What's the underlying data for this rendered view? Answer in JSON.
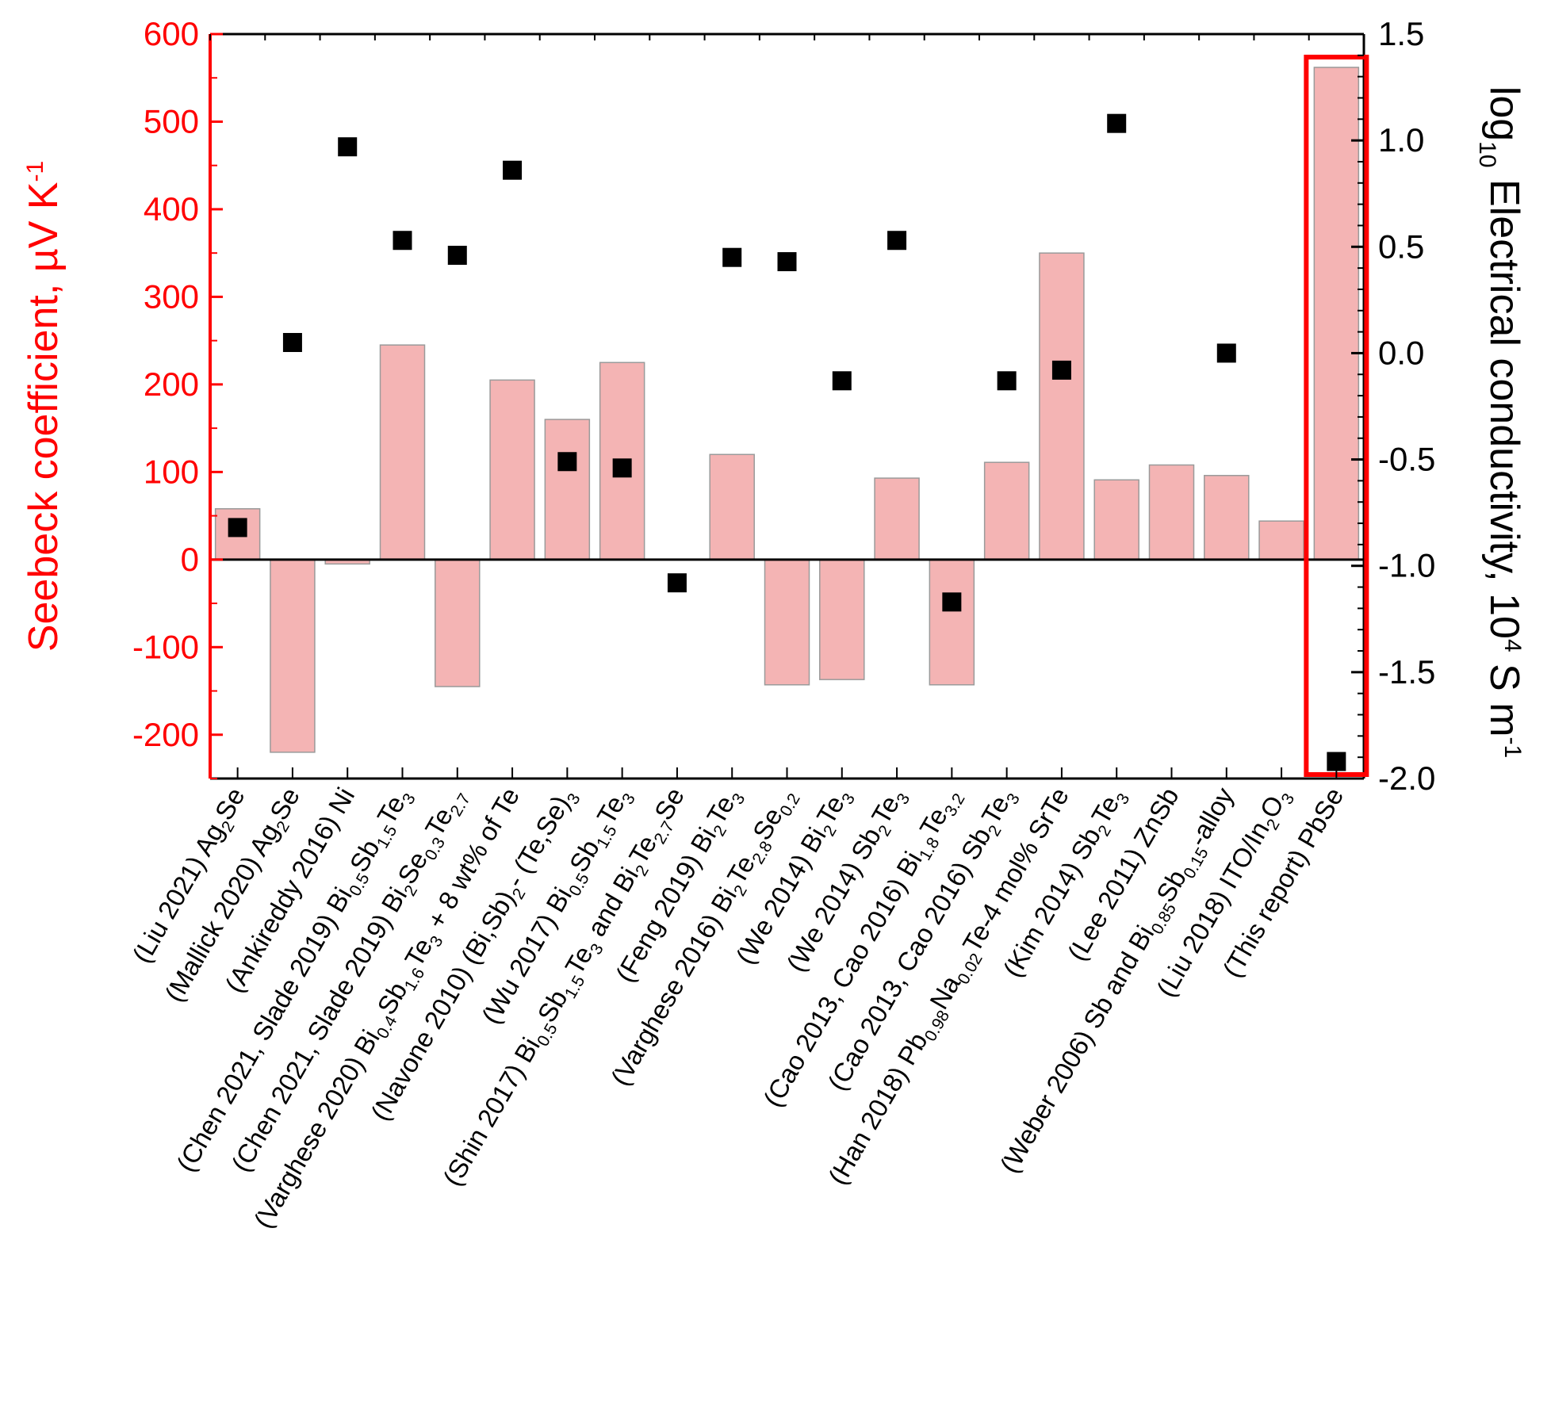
{
  "chart_data": {
    "type": "bar",
    "categories": [
      [
        {
          "t": "(Liu 2021) Ag"
        },
        {
          "t": "2",
          "s": true
        },
        {
          "t": "Se"
        }
      ],
      [
        {
          "t": "(Mallick 2020) Ag"
        },
        {
          "t": "2",
          "s": true
        },
        {
          "t": "Se"
        }
      ],
      [
        {
          "t": "(Ankireddy 2016) Ni"
        }
      ],
      [
        {
          "t": "(Chen 2021, Slade 2019) Bi"
        },
        {
          "t": "0.5",
          "s": true
        },
        {
          "t": "Sb"
        },
        {
          "t": "1.5",
          "s": true
        },
        {
          "t": "Te"
        },
        {
          "t": "3",
          "s": true
        }
      ],
      [
        {
          "t": "(Chen 2021, Slade 2019) Bi"
        },
        {
          "t": "2",
          "s": true
        },
        {
          "t": "Se"
        },
        {
          "t": "0.3",
          "s": true
        },
        {
          "t": "Te"
        },
        {
          "t": "2.7",
          "s": true
        }
      ],
      [
        {
          "t": "(Varghese 2020) Bi"
        },
        {
          "t": "0.4",
          "s": true
        },
        {
          "t": "Sb"
        },
        {
          "t": "1.6",
          "s": true
        },
        {
          "t": "Te"
        },
        {
          "t": "3",
          "s": true
        },
        {
          "t": " + 8 wt% of Te"
        }
      ],
      [
        {
          "t": "(Navone 2010) (Bi,Sb)"
        },
        {
          "t": "2",
          "s": true
        },
        {
          "t": "- (Te,Se)"
        },
        {
          "t": "3",
          "s": true
        }
      ],
      [
        {
          "t": "(Wu 2017) Bi"
        },
        {
          "t": "0.5",
          "s": true
        },
        {
          "t": "Sb"
        },
        {
          "t": "1.5",
          "s": true
        },
        {
          "t": "Te"
        },
        {
          "t": "3",
          "s": true
        }
      ],
      [
        {
          "t": "(Shin 2017) Bi"
        },
        {
          "t": "0.5",
          "s": true
        },
        {
          "t": "Sb"
        },
        {
          "t": "1.5",
          "s": true
        },
        {
          "t": "Te"
        },
        {
          "t": "3",
          "s": true
        },
        {
          "t": " and Bi"
        },
        {
          "t": "2",
          "s": true
        },
        {
          "t": "Te"
        },
        {
          "t": "2.7",
          "s": true
        },
        {
          "t": "Se"
        }
      ],
      [
        {
          "t": "(Feng 2019) Bi"
        },
        {
          "t": "2",
          "s": true
        },
        {
          "t": "Te"
        },
        {
          "t": "3",
          "s": true
        }
      ],
      [
        {
          "t": "(Varghese 2016) Bi"
        },
        {
          "t": "2",
          "s": true
        },
        {
          "t": "Te"
        },
        {
          "t": "2.8",
          "s": true
        },
        {
          "t": "Se"
        },
        {
          "t": "0.2",
          "s": true
        }
      ],
      [
        {
          "t": "(We 2014) Bi"
        },
        {
          "t": "2",
          "s": true
        },
        {
          "t": "Te"
        },
        {
          "t": "3",
          "s": true
        }
      ],
      [
        {
          "t": "(We 2014) Sb"
        },
        {
          "t": "2",
          "s": true
        },
        {
          "t": "Te"
        },
        {
          "t": "3",
          "s": true
        }
      ],
      [
        {
          "t": "(Cao 2013, Cao 2016) Bi"
        },
        {
          "t": "1.8",
          "s": true
        },
        {
          "t": "Te"
        },
        {
          "t": "3.2",
          "s": true
        }
      ],
      [
        {
          "t": "(Cao 2013, Cao 2016) Sb"
        },
        {
          "t": "2",
          "s": true
        },
        {
          "t": "Te"
        },
        {
          "t": "3",
          "s": true
        }
      ],
      [
        {
          "t": "(Han 2018) Pb"
        },
        {
          "t": "0.98",
          "s": true
        },
        {
          "t": "Na"
        },
        {
          "t": "0.02",
          "s": true
        },
        {
          "t": "Te-4 mol% SrTe"
        }
      ],
      [
        {
          "t": "(Kim 2014) Sb"
        },
        {
          "t": "2",
          "s": true
        },
        {
          "t": "Te"
        },
        {
          "t": "3",
          "s": true
        }
      ],
      [
        {
          "t": "(Lee 2011) ZnSb"
        }
      ],
      [
        {
          "t": "(Weber 2006) Sb and Bi"
        },
        {
          "t": "0.85",
          "s": true
        },
        {
          "t": "Sb"
        },
        {
          "t": "0.15",
          "s": true
        },
        {
          "t": "-alloy"
        }
      ],
      [
        {
          "t": "(Liu 2018) ITO/In"
        },
        {
          "t": "2",
          "s": true
        },
        {
          "t": "O"
        },
        {
          "t": "3",
          "s": true
        }
      ],
      [
        {
          "t": "(This report) PbSe"
        }
      ]
    ],
    "series": [
      {
        "axis": "left",
        "kind": "bar",
        "color": "#f4b4b4",
        "edge_color": "#9a9a9a",
        "values": [
          58,
          -220,
          -5,
          245,
          -145,
          205,
          160,
          225,
          0,
          120,
          -143,
          -137,
          93,
          -143,
          111,
          350,
          91,
          108,
          96,
          44,
          562
        ]
      },
      {
        "axis": "right",
        "kind": "scatter",
        "color": "#000000",
        "values": [
          -0.82,
          0.05,
          0.97,
          0.53,
          0.46,
          0.86,
          -0.51,
          -0.54,
          -1.08,
          0.45,
          0.43,
          -0.13,
          0.53,
          -1.17,
          -0.13,
          -0.08,
          1.08,
          null,
          0.0,
          null,
          -1.92
        ]
      }
    ],
    "left_axis": {
      "ylim": [
        -250,
        600
      ],
      "ticks": [
        "600",
        "500",
        "400",
        "300",
        "200",
        "100",
        "0",
        "-100",
        "-200"
      ],
      "label": "Seebeck coefficient, µV K",
      "label_sup": "-1",
      "color": "#ff0000"
    },
    "right_axis": {
      "ylim": [
        -2.0,
        1.5
      ],
      "ticks": [
        "1.5",
        "1.0",
        "0.5",
        "0.0",
        "-0.5",
        "-1.0",
        "-1.5",
        "-2.0"
      ],
      "label_log": "log",
      "label_log_sub": "10",
      "label_main": " Electrical conductivity, 10",
      "label_sup1": "4",
      "label_unit": " S m",
      "label_sup2": "-1",
      "color": "#000000"
    },
    "zero_line": true,
    "highlight": {
      "category_index": 20,
      "color": "#ff0000"
    }
  }
}
